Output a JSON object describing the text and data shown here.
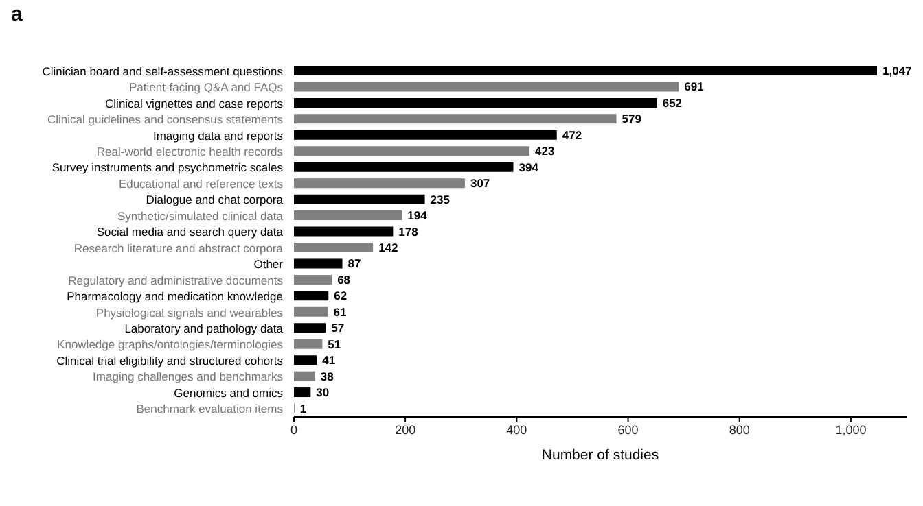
{
  "chart_data": {
    "type": "bar",
    "orientation": "horizontal",
    "xlabel": "Number of studies",
    "annotations": [
      "a"
    ],
    "categories": [
      "Clinician board and self-assessment questions",
      "Patient-facing Q&A and FAQs",
      "Clinical vignettes and case reports",
      "Clinical guidelines and consensus statements",
      "Imaging data and reports",
      "Real-world electronic health records",
      "Survey instruments and psychometric scales",
      "Educational and reference texts",
      "Dialogue and chat corpora",
      "Synthetic/simulated clinical data",
      "Social media and search query data",
      "Research literature and abstract corpora",
      "Other",
      "Regulatory and administrative documents",
      "Pharmacology and medication knowledge",
      "Physiological signals and wearables",
      "Laboratory and pathology data",
      "Knowledge graphs/ontologies/terminologies",
      "Clinical trial eligibility and structured cohorts",
      "Imaging challenges and benchmarks",
      "Genomics and omics",
      "Benchmark evaluation items"
    ],
    "values": [
      1047,
      691,
      652,
      579,
      472,
      423,
      394,
      307,
      235,
      194,
      178,
      142,
      87,
      68,
      62,
      61,
      57,
      51,
      41,
      38,
      30,
      1
    ],
    "value_labels": [
      "1,047",
      "691",
      "652",
      "579",
      "472",
      "423",
      "394",
      "307",
      "235",
      "194",
      "178",
      "142",
      "87",
      "68",
      "62",
      "61",
      "57",
      "51",
      "41",
      "38",
      "30",
      "1"
    ],
    "colors": [
      "#000000",
      "#808080",
      "#000000",
      "#808080",
      "#000000",
      "#808080",
      "#000000",
      "#808080",
      "#000000",
      "#808080",
      "#000000",
      "#808080",
      "#000000",
      "#808080",
      "#000000",
      "#808080",
      "#000000",
      "#808080",
      "#000000",
      "#808080",
      "#000000",
      "#808080"
    ],
    "xlim": [
      0,
      1100
    ],
    "xticks": [
      0,
      200,
      400,
      600,
      800,
      {
        "value": 1000,
        "label": "1,000"
      }
    ],
    "grid": false,
    "legend": false
  }
}
